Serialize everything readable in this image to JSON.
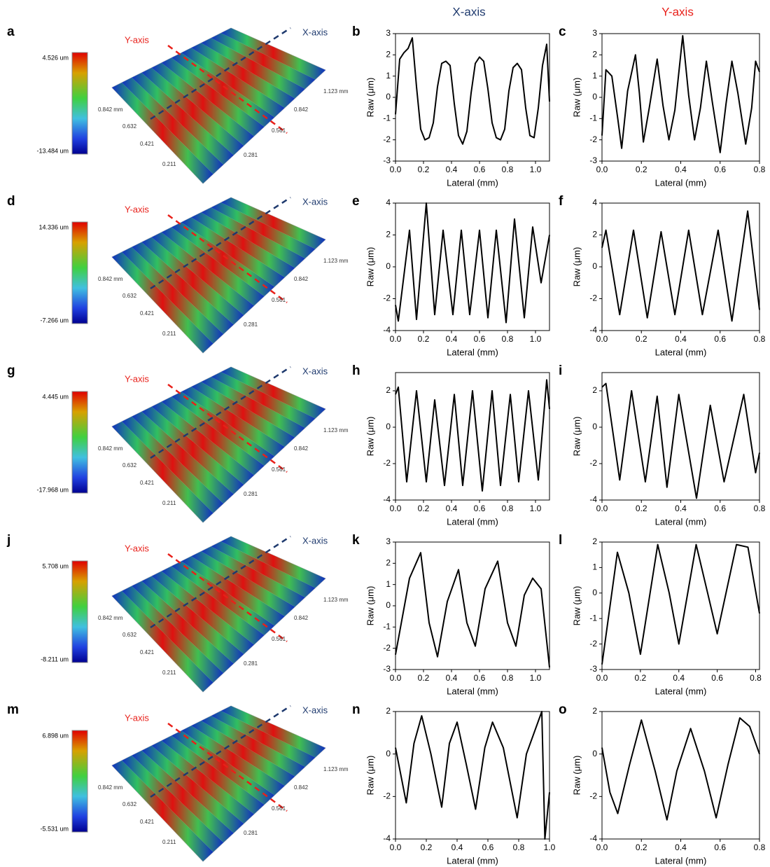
{
  "column_headers": [
    "X-axis",
    "Y-axis"
  ],
  "chart_data": [
    {
      "type": "surface",
      "panel": "a",
      "colorbar_max_label": "4.526 um",
      "colorbar_min_label": "-13.484 um",
      "annotations": [
        "Y-axis",
        "X-axis"
      ],
      "axis_labels": [
        "0.842 mm",
        "0.632",
        "0.421",
        "0.211",
        "0.281",
        "0.561",
        "0.842",
        "1.123 mm"
      ]
    },
    {
      "type": "line",
      "panel": "b",
      "xlabel": "Lateral (mm)",
      "ylabel": "Raw (μm)",
      "color": "#000000",
      "x": [
        0,
        0.03,
        0.06,
        0.09,
        0.12,
        0.15,
        0.18,
        0.21,
        0.24,
        0.27,
        0.3,
        0.33,
        0.36,
        0.39,
        0.42,
        0.45,
        0.48,
        0.51,
        0.54,
        0.57,
        0.6,
        0.63,
        0.66,
        0.69,
        0.72,
        0.75,
        0.78,
        0.81,
        0.84,
        0.87,
        0.9,
        0.93,
        0.96,
        0.99,
        1.02,
        1.05,
        1.08,
        1.1
      ],
      "values": [
        -0.8,
        1.8,
        2.1,
        2.3,
        2.8,
        0.5,
        -1.5,
        -2.0,
        -1.9,
        -1.2,
        0.5,
        1.6,
        1.7,
        1.5,
        -0.3,
        -1.8,
        -2.2,
        -1.6,
        0.2,
        1.6,
        1.9,
        1.7,
        0.4,
        -1.2,
        -1.9,
        -2.0,
        -1.5,
        0.3,
        1.4,
        1.6,
        1.3,
        -0.5,
        -1.8,
        -1.9,
        -0.5,
        1.5,
        2.5,
        -0.2
      ],
      "xlim": [
        0,
        1.1
      ],
      "ylim": [
        -3,
        3
      ],
      "xticks": [
        {
          "value": 0,
          "label": "0.0"
        },
        0.2,
        0.4,
        0.6,
        0.8,
        {
          "value": 1,
          "label": "1.0"
        }
      ],
      "yticks": [
        -3,
        -2,
        -1,
        0,
        1,
        2,
        3
      ]
    },
    {
      "type": "line",
      "panel": "c",
      "xlabel": "Lateral (mm)",
      "ylabel": "Raw (μm)",
      "color": "#000000",
      "x": [
        0,
        0.02,
        0.05,
        0.08,
        0.1,
        0.13,
        0.17,
        0.19,
        0.21,
        0.24,
        0.28,
        0.31,
        0.34,
        0.37,
        0.41,
        0.44,
        0.47,
        0.5,
        0.53,
        0.56,
        0.6,
        0.63,
        0.66,
        0.69,
        0.73,
        0.76,
        0.78,
        0.8
      ],
      "values": [
        -1.8,
        1.3,
        1.0,
        -1.0,
        -2.4,
        0.3,
        2.0,
        0.2,
        -2.1,
        -0.5,
        1.8,
        -0.4,
        -2.0,
        -0.6,
        2.9,
        0.1,
        -2.0,
        -0.5,
        1.7,
        -0.2,
        -2.6,
        -0.3,
        1.7,
        0.2,
        -2.2,
        -0.5,
        1.7,
        1.2
      ],
      "xlim": [
        0,
        0.8
      ],
      "ylim": [
        -3,
        3
      ],
      "xticks": [
        {
          "value": 0,
          "label": "0.0"
        },
        0.2,
        0.4,
        0.6,
        0.8
      ],
      "yticks": [
        -3,
        -2,
        -1,
        0,
        1,
        2,
        3
      ]
    },
    {
      "type": "surface",
      "panel": "d",
      "colorbar_max_label": "14.336 um",
      "colorbar_min_label": "-7.266 um",
      "annotations": [
        "Y-axis",
        "X-axis"
      ],
      "axis_labels": [
        "0.842 mm",
        "0.632",
        "0.421",
        "0.211",
        "0.281",
        "0.561",
        "0.842",
        "1.123 mm"
      ]
    },
    {
      "type": "line",
      "panel": "e",
      "xlabel": "Lateral (mm)",
      "ylabel": "Raw (μm)",
      "color": "#000000",
      "x": [
        0,
        0.02,
        0.1,
        0.15,
        0.22,
        0.28,
        0.34,
        0.41,
        0.47,
        0.53,
        0.6,
        0.66,
        0.72,
        0.79,
        0.85,
        0.92,
        0.98,
        1.04,
        1.1
      ],
      "values": [
        -2.4,
        -3.4,
        2.3,
        -3.3,
        4.0,
        -3.0,
        2.3,
        -3.0,
        2.3,
        -3.0,
        2.3,
        -3.2,
        2.3,
        -3.5,
        3.0,
        -3.2,
        2.5,
        -1.0,
        2.0
      ],
      "xlim": [
        0,
        1.1
      ],
      "ylim": [
        -4,
        4
      ],
      "xticks": [
        {
          "value": 0,
          "label": "0.0"
        },
        0.2,
        0.4,
        0.6,
        0.8,
        {
          "value": 1,
          "label": "1.0"
        }
      ],
      "yticks": [
        -4,
        -2,
        0,
        2,
        4
      ]
    },
    {
      "type": "line",
      "panel": "f",
      "xlabel": "Lateral (mm)",
      "ylabel": "Raw (μm)",
      "color": "#000000",
      "x": [
        0,
        0.02,
        0.09,
        0.16,
        0.23,
        0.3,
        0.37,
        0.44,
        0.51,
        0.59,
        0.66,
        0.74,
        0.8
      ],
      "values": [
        1.2,
        2.3,
        -3.0,
        2.3,
        -3.2,
        2.2,
        -3.0,
        2.3,
        -3.0,
        2.3,
        -3.4,
        3.5,
        -2.7
      ],
      "xlim": [
        0,
        0.8
      ],
      "ylim": [
        -4,
        4
      ],
      "xticks": [
        {
          "value": 0,
          "label": "0.0"
        },
        0.2,
        0.4,
        0.6,
        0.8
      ],
      "yticks": [
        -4,
        -2,
        0,
        2,
        4
      ]
    },
    {
      "type": "surface",
      "panel": "g",
      "colorbar_max_label": "4.445 um",
      "colorbar_min_label": "-17.968 um",
      "annotations": [
        "Y-axis",
        "X-axis"
      ],
      "axis_labels": [
        "0.842 mm",
        "0.632",
        "0.421",
        "0.211",
        "0.281",
        "0.561",
        "0.842",
        "1.123 mm"
      ]
    },
    {
      "type": "line",
      "panel": "h",
      "xlabel": "Lateral (mm)",
      "ylabel": "Raw (μm)",
      "color": "#000000",
      "x": [
        0,
        0.02,
        0.08,
        0.15,
        0.22,
        0.28,
        0.35,
        0.42,
        0.48,
        0.55,
        0.62,
        0.69,
        0.75,
        0.82,
        0.88,
        0.95,
        1.02,
        1.08,
        1.1
      ],
      "values": [
        1.8,
        2.2,
        -3.0,
        2.0,
        -3.0,
        1.5,
        -3.2,
        1.8,
        -3.2,
        2.0,
        -3.5,
        2.0,
        -3.2,
        1.8,
        -3.0,
        2.0,
        -2.9,
        2.6,
        1.0
      ],
      "xlim": [
        0,
        1.1
      ],
      "ylim": [
        -4,
        3
      ],
      "xticks": [
        {
          "value": 0,
          "label": "0.0"
        },
        0.2,
        0.4,
        0.6,
        0.8,
        {
          "value": 1,
          "label": "1.0"
        }
      ],
      "yticks": [
        -4,
        -2,
        0,
        2
      ]
    },
    {
      "type": "line",
      "panel": "i",
      "xlabel": "Lateral (mm)",
      "ylabel": "Raw (μm)",
      "color": "#000000",
      "x": [
        0,
        0.02,
        0.09,
        0.15,
        0.22,
        0.28,
        0.33,
        0.39,
        0.48,
        0.55,
        0.62,
        0.72,
        0.78,
        0.8
      ],
      "values": [
        2.2,
        2.4,
        -2.9,
        2.0,
        -3.0,
        1.7,
        -3.3,
        1.8,
        -3.9,
        1.2,
        -3.0,
        1.8,
        -2.5,
        -1.4
      ],
      "xlim": [
        0,
        0.8
      ],
      "ylim": [
        -4,
        3
      ],
      "xticks": [
        {
          "value": 0,
          "label": "0.0"
        },
        0.2,
        0.4,
        0.6,
        0.8
      ],
      "yticks": [
        -4,
        -2,
        0,
        2
      ]
    },
    {
      "type": "surface",
      "panel": "j",
      "colorbar_max_label": "5.708 um",
      "colorbar_min_label": "-8.211 um",
      "annotations": [
        "Y-axis",
        "X-axis"
      ],
      "axis_labels": [
        "0.842 mm",
        "0.632",
        "0.421",
        "0.211",
        "0.281",
        "0.561",
        "0.842",
        "1.123 mm"
      ]
    },
    {
      "type": "line",
      "panel": "k",
      "xlabel": "Lateral (mm)",
      "ylabel": "Raw (μm)",
      "color": "#000000",
      "x": [
        0,
        0.05,
        0.1,
        0.18,
        0.24,
        0.3,
        0.37,
        0.45,
        0.51,
        0.57,
        0.64,
        0.73,
        0.8,
        0.86,
        0.92,
        0.98,
        1.04,
        1.1
      ],
      "values": [
        -2.3,
        -0.5,
        1.3,
        2.5,
        -0.8,
        -2.4,
        0.2,
        1.7,
        -0.8,
        -1.9,
        0.8,
        2.1,
        -0.8,
        -1.9,
        0.5,
        1.3,
        0.8,
        -2.9
      ],
      "xlim": [
        0,
        1.1
      ],
      "ylim": [
        -3,
        3
      ],
      "xticks": [
        {
          "value": 0,
          "label": "0.0"
        },
        0.2,
        0.4,
        0.6,
        0.8,
        {
          "value": 1,
          "label": "1.0"
        }
      ],
      "yticks": [
        -3,
        -2,
        -1,
        0,
        1,
        2,
        3
      ]
    },
    {
      "type": "line",
      "panel": "l",
      "xlabel": "Lateral (mm)",
      "ylabel": "Raw (μm)",
      "color": "#000000",
      "x": [
        0,
        0.08,
        0.14,
        0.2,
        0.29,
        0.35,
        0.4,
        0.49,
        0.55,
        0.6,
        0.7,
        0.76,
        0.82
      ],
      "values": [
        -2.8,
        1.6,
        0.0,
        -2.4,
        1.9,
        0.0,
        -2.0,
        1.9,
        0.0,
        -1.6,
        1.9,
        1.8,
        -0.8
      ],
      "xlim": [
        0,
        0.82
      ],
      "ylim": [
        -3,
        2
      ],
      "xticks": [
        {
          "value": 0,
          "label": "0.0"
        },
        0.2,
        0.4,
        0.6,
        0.8
      ],
      "yticks": [
        -3,
        -2,
        -1,
        0,
        1,
        2
      ]
    },
    {
      "type": "surface",
      "panel": "m",
      "colorbar_max_label": "6.898 um",
      "colorbar_min_label": "-5.531 um",
      "annotations": [
        "Y-axis",
        "X-axis"
      ],
      "axis_labels": [
        "0.842 mm",
        "0.632",
        "0.421",
        "0.211",
        "0.281",
        "0.561",
        "0.842",
        "1.123 mm"
      ]
    },
    {
      "type": "line",
      "panel": "n",
      "xlabel": "Lateral (mm)",
      "ylabel": "Raw (μm)",
      "color": "#000000",
      "x": [
        0,
        0.07,
        0.12,
        0.17,
        0.23,
        0.3,
        0.35,
        0.4,
        0.46,
        0.52,
        0.58,
        0.63,
        0.7,
        0.79,
        0.85,
        0.95,
        0.97,
        1.0
      ],
      "values": [
        0.3,
        -2.3,
        0.5,
        1.8,
        0.0,
        -2.5,
        0.5,
        1.5,
        -0.5,
        -2.6,
        0.3,
        1.5,
        0.3,
        -3.0,
        0.0,
        2.0,
        -4.0,
        -1.8
      ],
      "xlim": [
        0,
        1.0
      ],
      "ylim": [
        -4,
        2
      ],
      "xticks": [
        {
          "value": 0,
          "label": "0.0"
        },
        0.2,
        0.4,
        0.6,
        0.8,
        {
          "value": 1,
          "label": "1.0"
        }
      ],
      "yticks": [
        -4,
        -2,
        0,
        2
      ]
    },
    {
      "type": "line",
      "panel": "o",
      "xlabel": "Lateral (mm)",
      "ylabel": "Raw (μm)",
      "color": "#000000",
      "x": [
        0,
        0.04,
        0.08,
        0.14,
        0.2,
        0.27,
        0.33,
        0.38,
        0.45,
        0.52,
        0.58,
        0.64,
        0.7,
        0.75,
        0.8
      ],
      "values": [
        0.3,
        -1.8,
        -2.8,
        -0.5,
        1.6,
        -0.8,
        -3.1,
        -0.8,
        1.2,
        -0.8,
        -3.0,
        -0.5,
        1.7,
        1.3,
        0.0
      ],
      "xlim": [
        0,
        0.8
      ],
      "ylim": [
        -4,
        2
      ],
      "xticks": [
        {
          "value": 0,
          "label": "0.0"
        },
        0.2,
        0.4,
        0.6,
        0.8
      ],
      "yticks": [
        -4,
        -2,
        0,
        2
      ]
    }
  ]
}
